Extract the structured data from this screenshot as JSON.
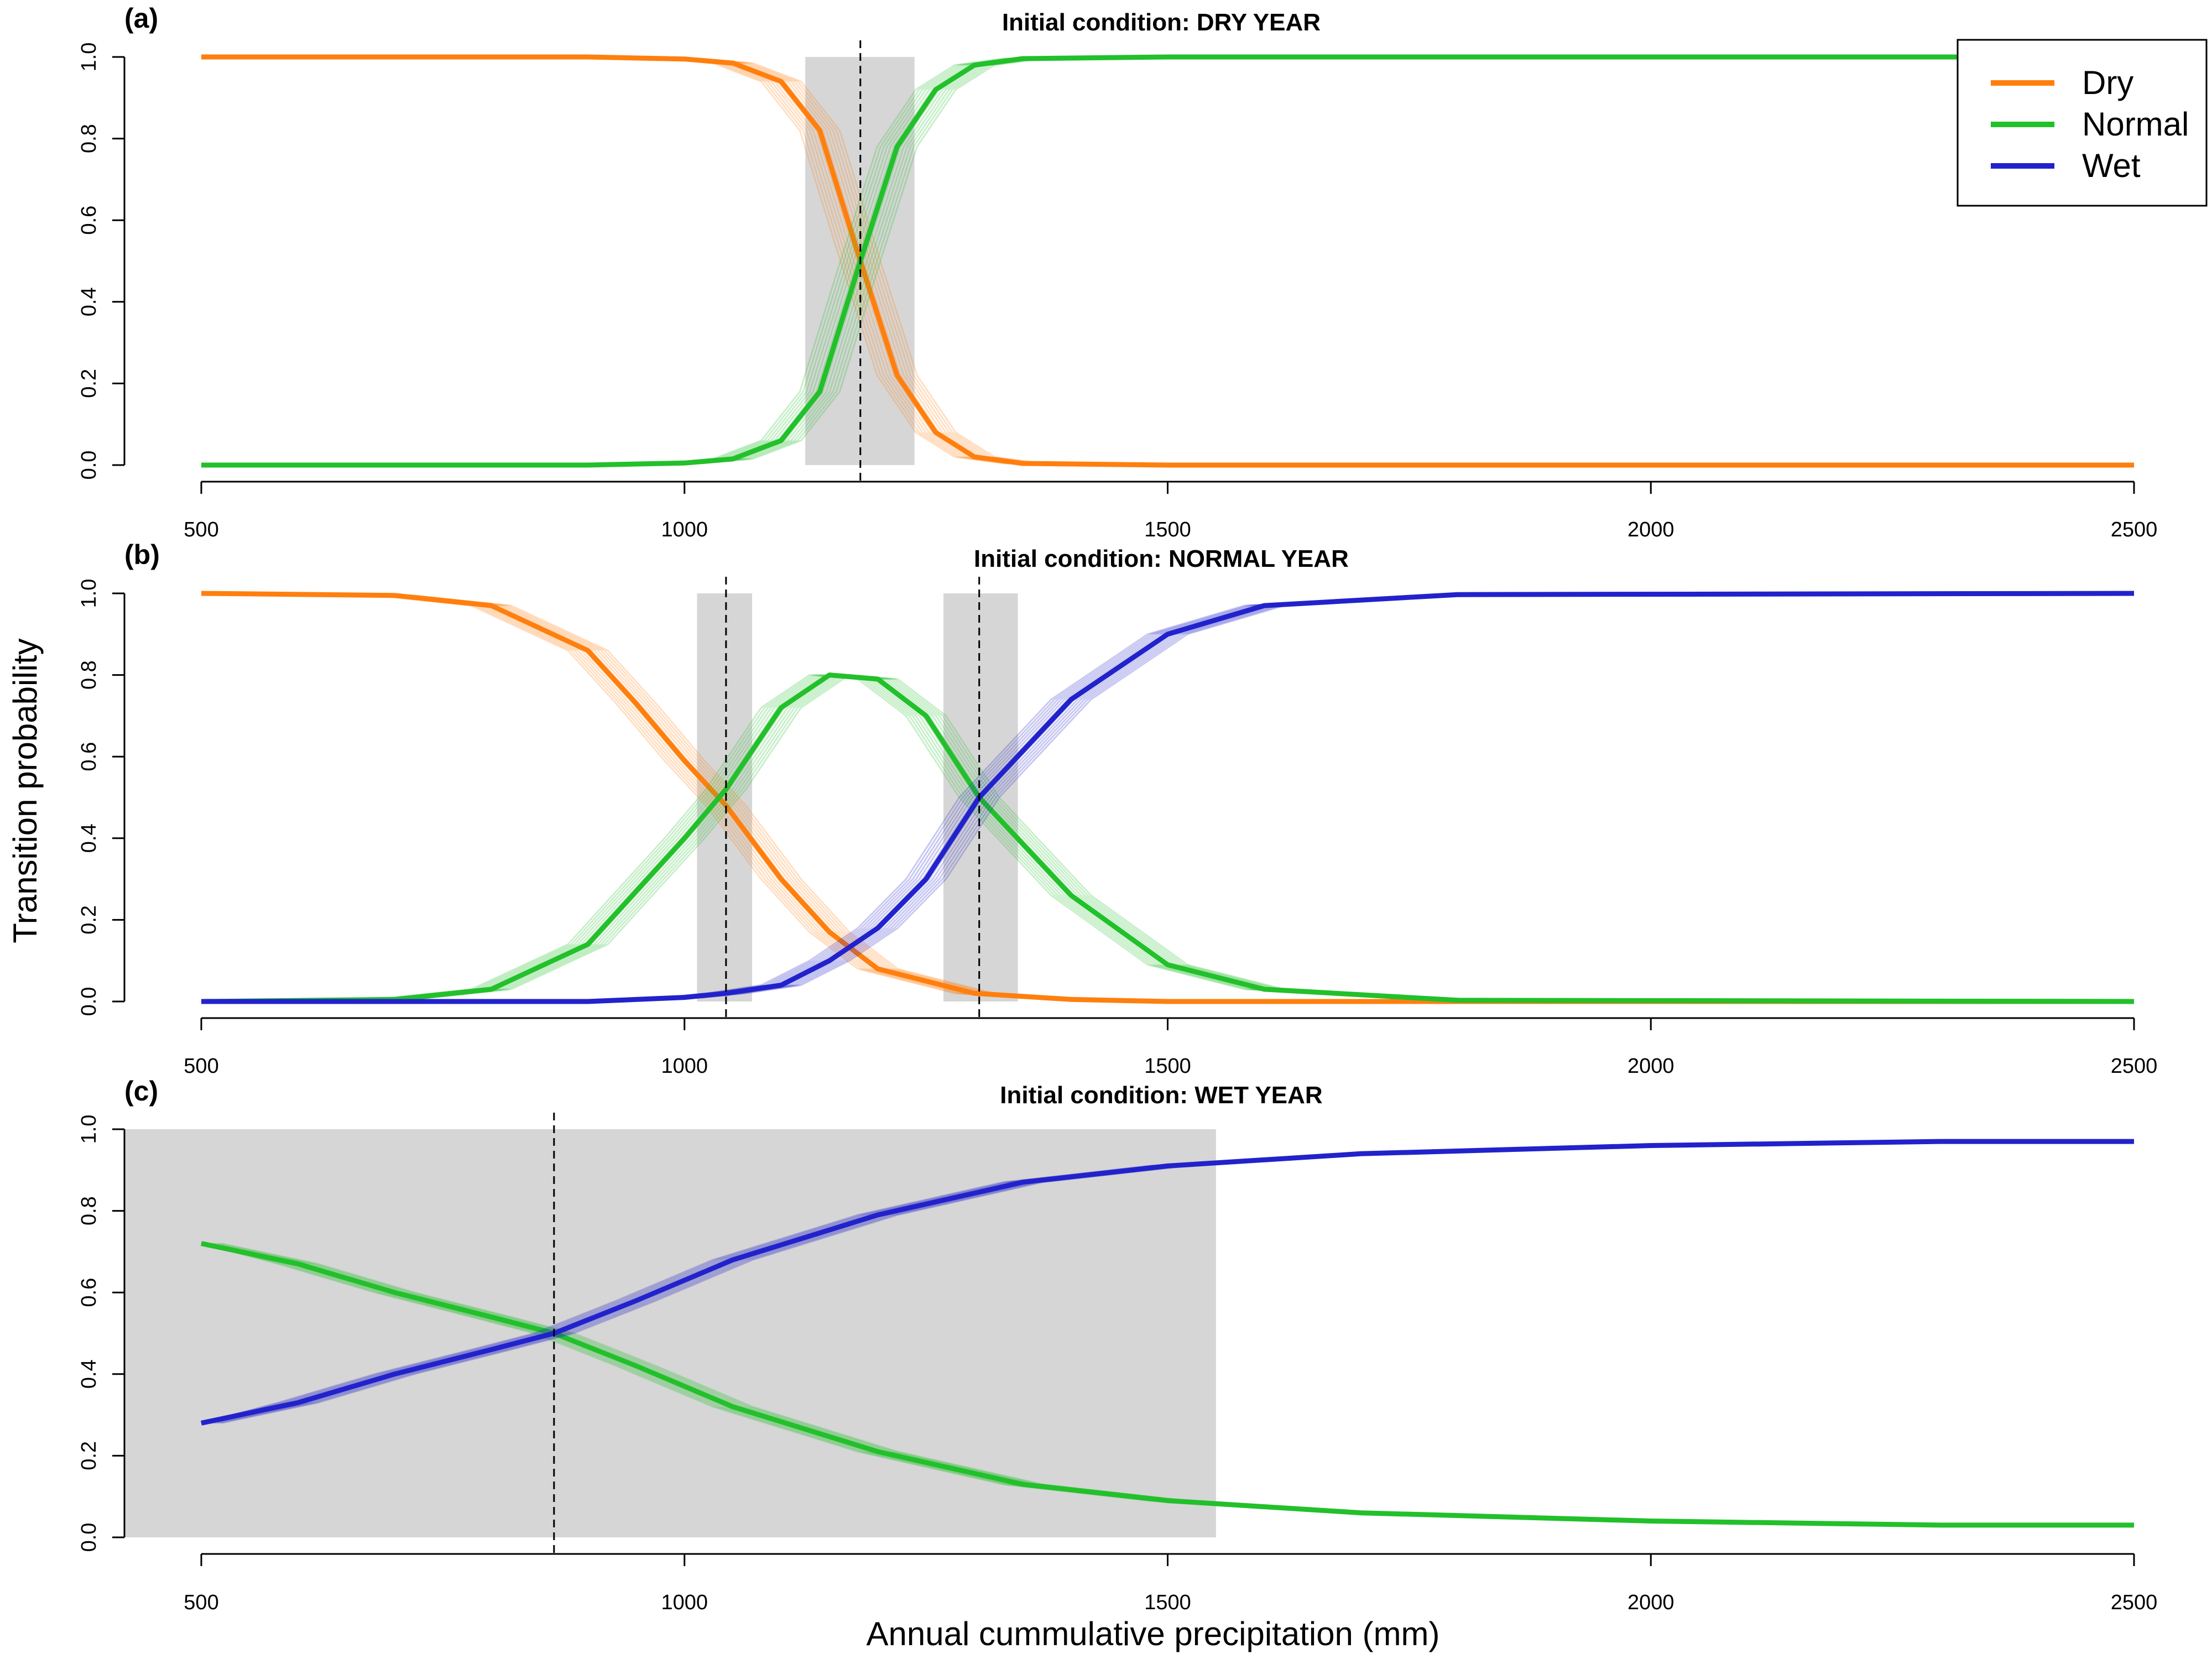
{
  "chart_data": [
    {
      "type": "line",
      "panel_letter": "(a)",
      "title": "Initial condition: DRY YEAR",
      "xlim": [
        500,
        2500
      ],
      "ylim": [
        0,
        1
      ],
      "x_ticks": [
        "500",
        "1000",
        "1500",
        "2000",
        "2500"
      ],
      "y_ticks": [
        "0.0",
        "0.2",
        "0.4",
        "0.6",
        "0.8",
        "1.0"
      ],
      "grid": false,
      "threshold_line": 1182,
      "shaded_intervals": [
        [
          1125,
          1238
        ]
      ],
      "series": [
        {
          "name": "Dry",
          "color": "#ff7f0e",
          "x": [
            500,
            900,
            1000,
            1050,
            1100,
            1140,
            1182,
            1220,
            1260,
            1300,
            1350,
            1500,
            2500
          ],
          "y": [
            1.0,
            1.0,
            0.995,
            0.985,
            0.94,
            0.82,
            0.5,
            0.22,
            0.08,
            0.02,
            0.004,
            0.0,
            0.0
          ]
        },
        {
          "name": "Normal",
          "color": "#22c02a",
          "x": [
            500,
            900,
            1000,
            1050,
            1100,
            1140,
            1182,
            1220,
            1260,
            1300,
            1350,
            1500,
            2500
          ],
          "y": [
            0.0,
            0.0,
            0.005,
            0.015,
            0.06,
            0.18,
            0.5,
            0.78,
            0.92,
            0.98,
            0.996,
            1.0,
            1.0
          ]
        }
      ]
    },
    {
      "type": "line",
      "panel_letter": "(b)",
      "title": "Initial condition: NORMAL YEAR",
      "xlim": [
        500,
        2500
      ],
      "ylim": [
        0,
        1
      ],
      "x_ticks": [
        "500",
        "1000",
        "1500",
        "2000",
        "2500"
      ],
      "y_ticks": [
        "0.0",
        "0.2",
        "0.4",
        "0.6",
        "0.8",
        "1.0"
      ],
      "grid": false,
      "threshold_line": [
        1043,
        1305
      ],
      "shaded_intervals": [
        [
          1013,
          1070
        ],
        [
          1268,
          1345
        ]
      ],
      "series": [
        {
          "name": "Dry",
          "color": "#ff7f0e",
          "x": [
            500,
            700,
            800,
            900,
            950,
            1000,
            1043,
            1100,
            1150,
            1200,
            1300,
            1400,
            1500,
            2500
          ],
          "y": [
            1.0,
            0.995,
            0.97,
            0.86,
            0.73,
            0.59,
            0.48,
            0.3,
            0.17,
            0.08,
            0.02,
            0.005,
            0.0,
            0.0
          ]
        },
        {
          "name": "Normal",
          "color": "#22c02a",
          "x": [
            500,
            700,
            800,
            900,
            950,
            1000,
            1043,
            1100,
            1150,
            1200,
            1250,
            1305,
            1400,
            1500,
            1600,
            1800,
            2500
          ],
          "y": [
            0.0,
            0.005,
            0.03,
            0.14,
            0.27,
            0.4,
            0.52,
            0.72,
            0.8,
            0.79,
            0.7,
            0.5,
            0.26,
            0.09,
            0.03,
            0.003,
            0.0
          ]
        },
        {
          "name": "Wet",
          "color": "#2222cc",
          "x": [
            500,
            900,
            1000,
            1043,
            1100,
            1150,
            1200,
            1250,
            1305,
            1400,
            1500,
            1600,
            1800,
            2500
          ],
          "y": [
            0.0,
            0.0,
            0.01,
            0.02,
            0.04,
            0.1,
            0.18,
            0.3,
            0.5,
            0.74,
            0.9,
            0.97,
            0.997,
            1.0
          ]
        }
      ]
    },
    {
      "type": "line",
      "panel_letter": "(c)",
      "title": "Initial condition: WET YEAR",
      "xlim": [
        500,
        2500
      ],
      "ylim": [
        0,
        1
      ],
      "x_ticks": [
        "500",
        "1000",
        "1500",
        "2000",
        "2500"
      ],
      "y_ticks": [
        "0.0",
        "0.2",
        "0.4",
        "0.6",
        "0.8",
        "1.0"
      ],
      "grid": false,
      "threshold_line": 865,
      "shaded_intervals": [
        [
          420,
          1550
        ]
      ],
      "series": [
        {
          "name": "Normal",
          "color": "#22c02a",
          "x": [
            500,
            600,
            700,
            800,
            865,
            950,
            1050,
            1200,
            1350,
            1500,
            1700,
            2000,
            2300,
            2500
          ],
          "y": [
            0.72,
            0.67,
            0.6,
            0.54,
            0.5,
            0.42,
            0.32,
            0.21,
            0.13,
            0.09,
            0.06,
            0.04,
            0.03,
            0.03
          ]
        },
        {
          "name": "Wet",
          "color": "#2222cc",
          "x": [
            500,
            600,
            700,
            800,
            865,
            950,
            1050,
            1200,
            1350,
            1500,
            1700,
            2000,
            2300,
            2500
          ],
          "y": [
            0.28,
            0.33,
            0.4,
            0.46,
            0.5,
            0.58,
            0.68,
            0.79,
            0.87,
            0.91,
            0.94,
            0.96,
            0.97,
            0.97
          ]
        }
      ]
    }
  ],
  "shared": {
    "ylabel": "Transition probability",
    "xlabel": "Annual cummulative precipitation (mm)",
    "legend": {
      "position": "top-right",
      "items": [
        {
          "label": "Dry",
          "color": "#ff7f0e"
        },
        {
          "label": "Normal",
          "color": "#22c02a"
        },
        {
          "label": "Wet",
          "color": "#2222cc"
        }
      ]
    }
  }
}
